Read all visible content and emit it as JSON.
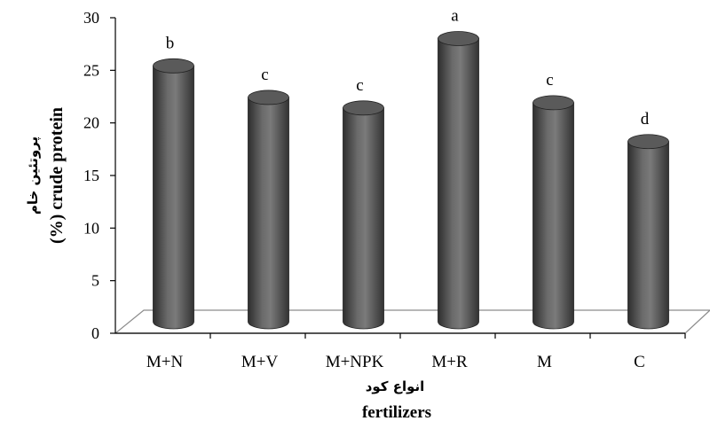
{
  "chart_data": {
    "type": "bar",
    "title": "",
    "categories": [
      "M+N",
      "M+V",
      "M+NPK",
      "M+R",
      "M",
      "C"
    ],
    "values": [
      25.0,
      22.0,
      21.0,
      27.6,
      21.5,
      17.8
    ],
    "significance_letters": [
      "b",
      "c",
      "c",
      "a",
      "c",
      "d"
    ],
    "xlabel_fa": "انواع کود",
    "xlabel": "fertilizers",
    "ylabel_fa": "پروتئین خام",
    "ylabel": "(%) crude protein",
    "ylim": [
      0,
      30
    ],
    "yticks": [
      "0",
      "5",
      "10",
      "15",
      "20",
      "25",
      "30"
    ],
    "grid": false,
    "legend": "none",
    "style": "3d-cylinder",
    "colors": {
      "bar": "#555555",
      "bar_dark": "#2b2b2b",
      "bar_light": "#8a8a8a",
      "floor": "#ffffff",
      "axis": "#000000"
    }
  }
}
